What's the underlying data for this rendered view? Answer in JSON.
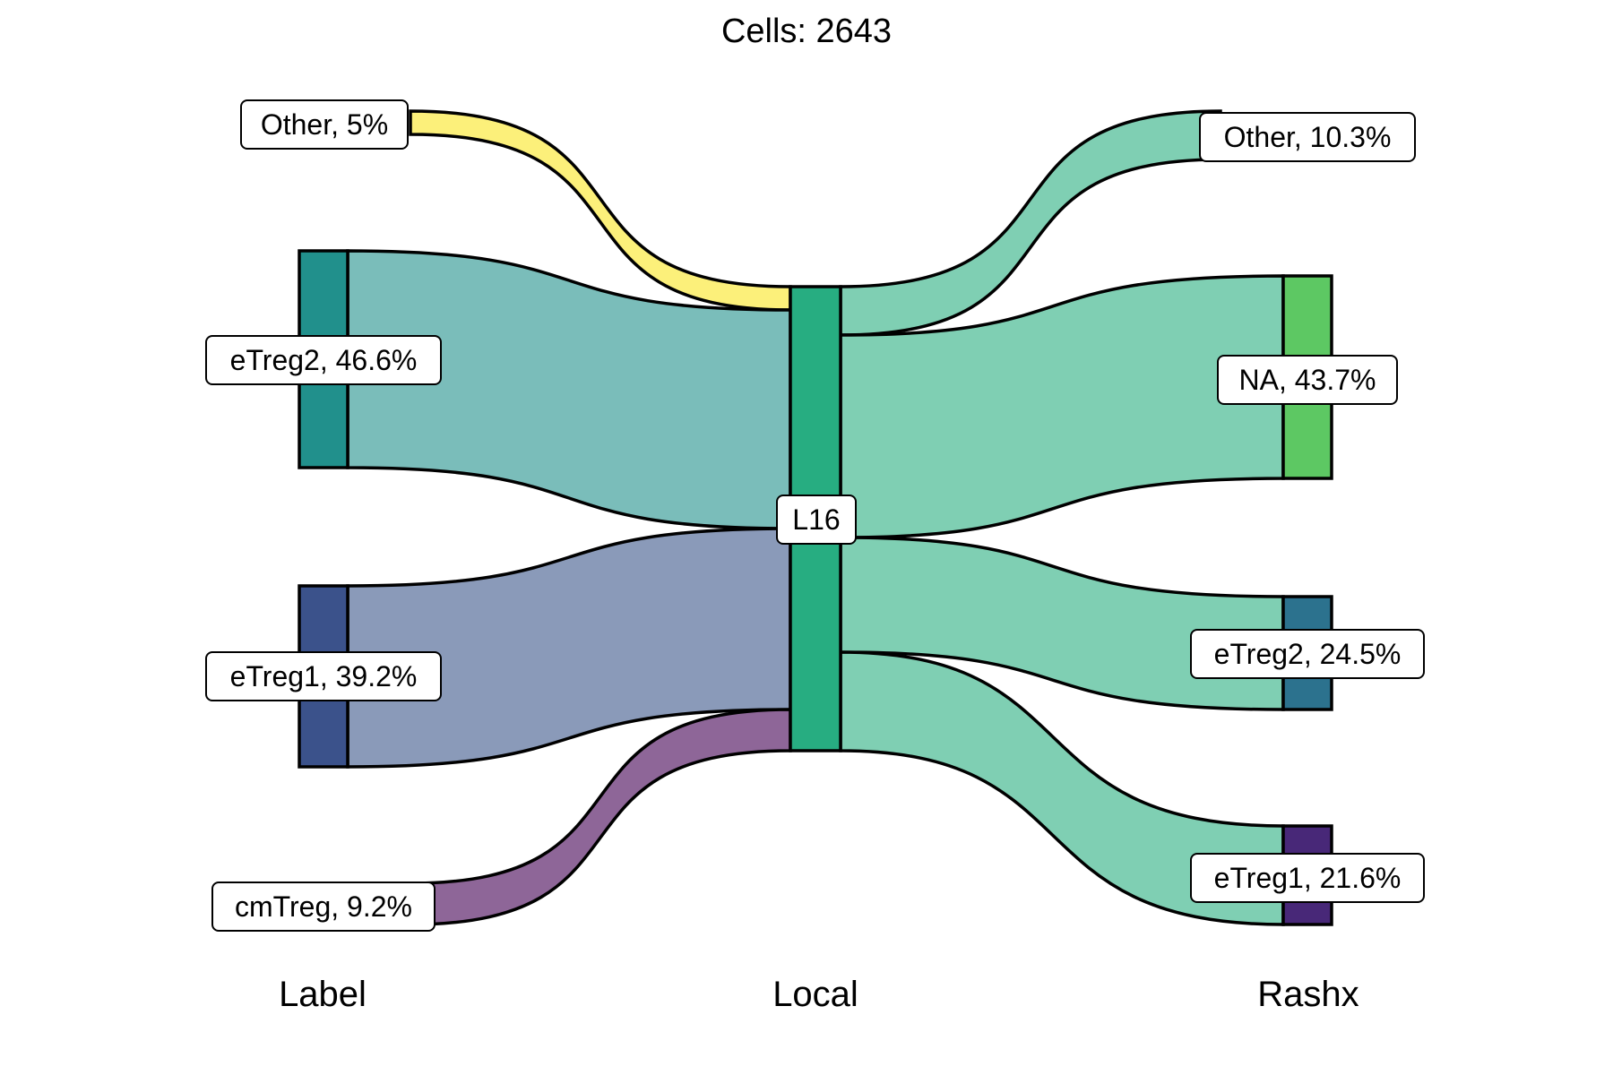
{
  "title": "Cells:  2643",
  "axes": [
    "Label",
    "Local",
    "Rashx"
  ],
  "colors": {
    "yellow": "#FDE768",
    "teal": "#21908C",
    "navy": "#3B528B",
    "purple": "#482878",
    "green_node": "#27AD81",
    "lime": "#5DC863",
    "blue_teal": "#2C728E",
    "flow_label_yellow": "#FCF07A",
    "flow_label_teal": "#7ABDBA",
    "flow_label_navy": "#8A9AB9",
    "flow_label_purple": "#8E6698",
    "flow_right": "#7FCFB3"
  },
  "nodes": {
    "label": [
      {
        "name": "Other",
        "pct": "5%",
        "text": "Other, 5%"
      },
      {
        "name": "eTreg2",
        "pct": "46.6%",
        "text": "eTreg2, 46.6%"
      },
      {
        "name": "eTreg1",
        "pct": "39.2%",
        "text": "eTreg1, 39.2%"
      },
      {
        "name": "cmTreg",
        "pct": "9.2%",
        "text": "cmTreg, 9.2%"
      }
    ],
    "local": [
      {
        "name": "L16",
        "text": "L16"
      }
    ],
    "rashx": [
      {
        "name": "Other",
        "pct": "10.3%",
        "text": "Other, 10.3%"
      },
      {
        "name": "NA",
        "pct": "43.7%",
        "text": "NA, 43.7%"
      },
      {
        "name": "eTreg2",
        "pct": "24.5%",
        "text": "eTreg2, 24.5%"
      },
      {
        "name": "eTreg1",
        "pct": "21.6%",
        "text": "eTreg1, 21.6%"
      }
    ]
  }
}
